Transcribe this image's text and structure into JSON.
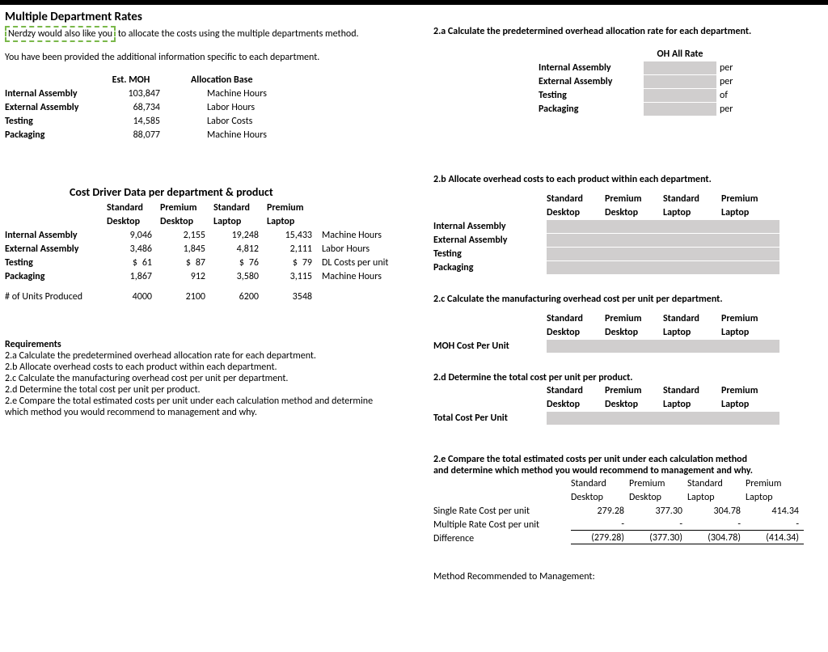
{
  "title": "Multiple Department Rates",
  "intro_dashed": "Nerdzy would also like you",
  "intro_rest": " to allocate the costs using the multiple departments method.",
  "subline": "You have been provided the additional information specific to each department.",
  "deptTable": {
    "h1": "Est. MOH",
    "h2": "Allocation Base",
    "rows": [
      {
        "name": "Internal Assembly",
        "moh": "103,847",
        "base": "Machine Hours"
      },
      {
        "name": "External Assembly",
        "moh": "68,734",
        "base": "Labor Hours"
      },
      {
        "name": "Testing",
        "moh": "14,585",
        "base": "Labor Costs"
      },
      {
        "name": "Packaging",
        "moh": "88,077",
        "base": "Machine Hours"
      }
    ]
  },
  "cdTitle": "Cost Driver Data per department & product",
  "prodH": {
    "c1": "Standard",
    "c2": "Premium",
    "c3": "Standard",
    "c4": "Premium"
  },
  "prodH2": {
    "c1": "Desktop",
    "c2": "Desktop",
    "c3": "Laptop",
    "c4": "Laptop"
  },
  "cd": [
    {
      "name": "Internal Assembly",
      "v": [
        "9,046",
        "2,155",
        "19,248",
        "15,433"
      ],
      "cb": "Machine Hours",
      "d": false
    },
    {
      "name": "External Assembly",
      "v": [
        "3,486",
        "1,845",
        "4,812",
        "2,111"
      ],
      "cb": "Labor Hours",
      "d": false
    },
    {
      "name": "Testing",
      "v": [
        "61",
        "87",
        "76",
        "79"
      ],
      "cb": "DL Costs per unit",
      "d": true
    },
    {
      "name": "Packaging",
      "v": [
        "1,867",
        "912",
        "3,580",
        "3,115"
      ],
      "cb": "Machine Hours",
      "d": false
    }
  ],
  "unitsLabel": "# of Units Produced",
  "units": [
    "4000",
    "2100",
    "6200",
    "3548"
  ],
  "reqTitle": "Requirements",
  "req": [
    "2.a Calculate the predetermined overhead allocation rate for each department.",
    "2.b Allocate overhead costs to each product within each department.",
    "2.c Calculate the manufacturing overhead cost per unit per department.",
    "2.d Determine the total cost per unit per product.",
    "2.e Compare the total estimated costs per unit under each calculation method and determine",
    "which method you would recommend to management and why."
  ],
  "s2a": {
    "title": "2.a Calculate the predetermined overhead allocation rate for each department.",
    "colH": "OH All Rate",
    "rows": [
      {
        "n": "Internal Assembly",
        "u": "per"
      },
      {
        "n": "External Assembly",
        "u": "per"
      },
      {
        "n": "Testing",
        "u": "of"
      },
      {
        "n": "Packaging",
        "u": "per"
      }
    ]
  },
  "s2b": {
    "title": "2.b Allocate overhead costs to each product within each department.",
    "rows": [
      "Internal Assembly",
      "External Assembly",
      "Testing",
      "Packaging"
    ]
  },
  "s2c": {
    "title": "2.c Calculate the manufacturing overhead cost per unit per department.",
    "label": "MOH Cost Per Unit"
  },
  "s2d": {
    "title": "2.d Determine the total cost per unit per product.",
    "label": "Total Cost Per Unit"
  },
  "s2e": {
    "title1": "2.e Compare the total estimated costs per unit under each calculation method",
    "title2": "and determine which method you would recommend to management and why.",
    "rows": [
      {
        "n": "Single Rate Cost per unit",
        "v": [
          "279.28",
          "377.30",
          "304.78",
          "414.34"
        ],
        "bb": false
      },
      {
        "n": "Multiple Rate Cost per unit",
        "v": [
          "-",
          "-",
          "-",
          "-"
        ],
        "bb": true
      },
      {
        "n": "Difference",
        "v": [
          "(279.28)",
          "(377.30)",
          "(304.78)",
          "(414.34)"
        ],
        "bb": true
      }
    ],
    "method": "Method Recommended to Management:"
  }
}
